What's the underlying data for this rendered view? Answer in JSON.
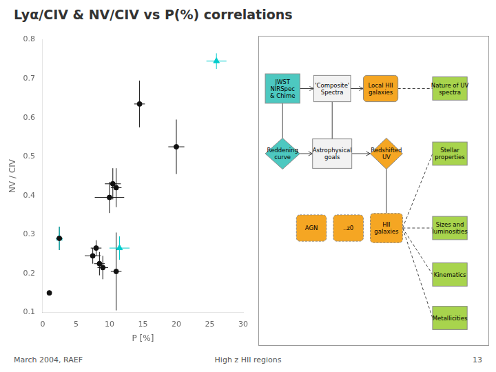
{
  "chart_data": [
    {
      "type": "scatter",
      "title": "Lyα/CIV & NV/CIV vs P(%) correlations",
      "xlabel": "P [%]",
      "ylabel": "NV / CIV",
      "xlim": [
        0,
        30
      ],
      "ylim": [
        0.1,
        0.8
      ],
      "xticks": [
        0,
        5,
        10,
        15,
        20,
        25,
        30
      ],
      "yticks": [
        0.1,
        0.2,
        0.3,
        0.4,
        0.5,
        0.6,
        0.7,
        0.8
      ],
      "grid": false,
      "annotations": [
        "March 2004, RAEF",
        "High z HII regions",
        "13"
      ],
      "series": [
        {
          "color": "#111111",
          "marker": "circle",
          "x": [
            1.0,
            2.5,
            7.5,
            8.0,
            8.5,
            9.0,
            10.0,
            10.5,
            11.0,
            11.0,
            14.5,
            20.0
          ],
          "values": [
            0.15,
            0.29,
            0.245,
            0.265,
            0.225,
            0.215,
            0.395,
            0.43,
            0.42,
            0.205,
            0.635,
            0.525
          ],
          "xerr": [
            0.0,
            0.5,
            1.2,
            0.8,
            0.8,
            0.8,
            2.2,
            1.2,
            0.8,
            0.8,
            0.8,
            1.2
          ],
          "yerr": [
            0.0,
            0.03,
            0.02,
            0.02,
            0.03,
            0.03,
            0.04,
            0.04,
            0.05,
            0.1,
            0.06,
            0.07
          ]
        },
        {
          "color": "#00CCCC",
          "marker": "triangle",
          "x": [
            2.5,
            11.5,
            26.0
          ],
          "values": [
            0.29,
            0.265,
            0.745
          ],
          "xerr": [
            0.5,
            1.5,
            1.5
          ],
          "yerr": [
            0.03,
            0.03,
            0.02
          ]
        }
      ]
    },
    {
      "type": "diagram",
      "annotations": [
        "JWST\nNIRSpec\n& Chime",
        "'Composite'\nSpectra",
        "Local HII\ngalaxies",
        "Nature of UV\nspectra",
        "Reddening\ncurve",
        "Astrophysical\ngoals",
        "Redshifted\nUV",
        "Stellar\nproperties",
        "AGN",
        "..z0",
        "HII\ngalaxies",
        "Sizes and\nluminosities",
        "Kinematics",
        "Metallicities"
      ],
      "colors": [
        "#4DC8C0",
        "#F2F2F2",
        "#F5A623",
        "#A8D44D",
        "#4DC8C0",
        "#F2F2F2",
        "#F5A623",
        "#A8D44D",
        "#F5A623",
        "#F5A623",
        "#F5A623",
        "#A8D44D",
        "#A8D44D",
        "#A8D44D"
      ]
    }
  ]
}
